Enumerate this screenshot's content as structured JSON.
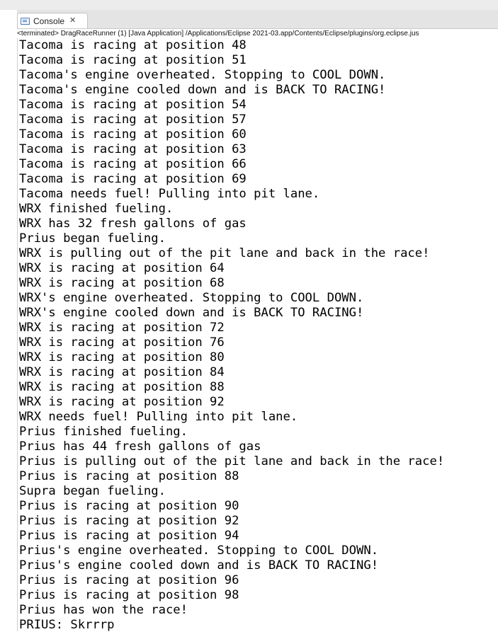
{
  "window": {
    "tab_label": "Console",
    "tab_close_glyph": "✕",
    "status_line": "<terminated> DragRaceRunner (1) [Java Application] /Applications/Eclipse 2021-03.app/Contents/Eclipse/plugins/org.eclipse.jus"
  },
  "icons": {
    "console_tab_icon": "console-icon",
    "close_icon": "close-icon"
  },
  "console": {
    "lines": [
      "Tacoma is racing at position 48",
      "Tacoma is racing at position 51",
      "Tacoma's engine overheated. Stopping to COOL DOWN.",
      "Tacoma's engine cooled down and is BACK TO RACING!",
      "Tacoma is racing at position 54",
      "Tacoma is racing at position 57",
      "Tacoma is racing at position 60",
      "Tacoma is racing at position 63",
      "Tacoma is racing at position 66",
      "Tacoma is racing at position 69",
      "Tacoma needs fuel! Pulling into pit lane.",
      "WRX finished fueling.",
      "WRX has 32 fresh gallons of gas",
      "Prius began fueling.",
      "WRX is pulling out of the pit lane and back in the race!",
      "WRX is racing at position 64",
      "WRX is racing at position 68",
      "WRX's engine overheated. Stopping to COOL DOWN.",
      "WRX's engine cooled down and is BACK TO RACING!",
      "WRX is racing at position 72",
      "WRX is racing at position 76",
      "WRX is racing at position 80",
      "WRX is racing at position 84",
      "WRX is racing at position 88",
      "WRX is racing at position 92",
      "WRX needs fuel! Pulling into pit lane.",
      "Prius finished fueling.",
      "Prius has 44 fresh gallons of gas",
      "Prius is pulling out of the pit lane and back in the race!",
      "Prius is racing at position 88",
      "Supra began fueling.",
      "Prius is racing at position 90",
      "Prius is racing at position 92",
      "Prius is racing at position 94",
      "Prius's engine overheated. Stopping to COOL DOWN.",
      "Prius's engine cooled down and is BACK TO RACING!",
      "Prius is racing at position 96",
      "Prius is racing at position 98",
      "Prius has won the race!",
      "PRIUS: Skrrrp"
    ]
  }
}
